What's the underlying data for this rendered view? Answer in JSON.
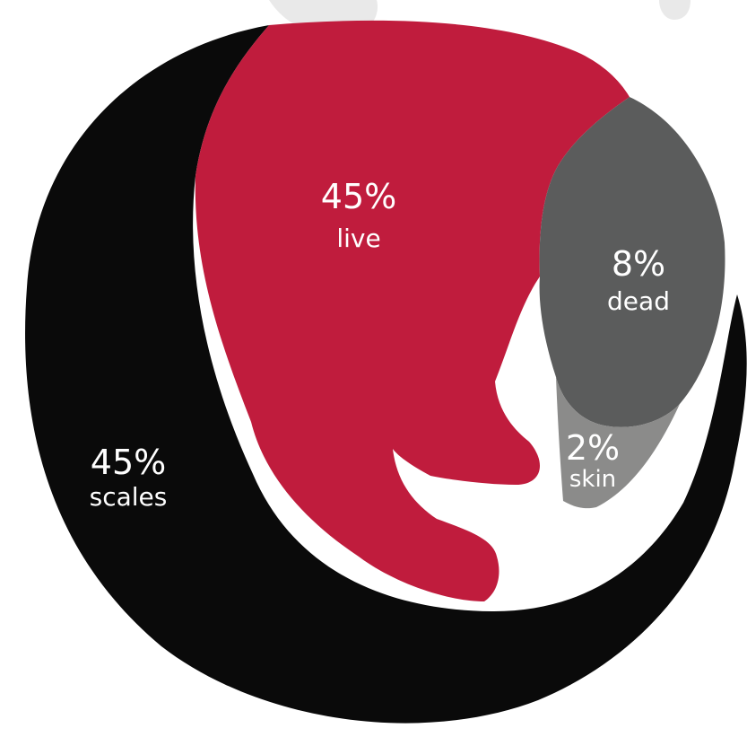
{
  "chart_data": {
    "type": "pie",
    "segments": [
      {
        "name": "scales",
        "value": 45,
        "label_value": "45%",
        "label_name": "scales",
        "color": "#0a0a0a"
      },
      {
        "name": "live",
        "value": 45,
        "label_value": "45%",
        "label_name": "live",
        "color": "#c01c3d"
      },
      {
        "name": "dead",
        "value": 8,
        "label_value": "8%",
        "label_name": "dead",
        "color": "#5b5c5c"
      },
      {
        "name": "skin",
        "value": 2,
        "label_value": "2%",
        "label_name": "skin",
        "color": "#8b8b8a"
      }
    ]
  },
  "colors": {
    "background": "#ffffff",
    "smudge": "#e9e9e9"
  }
}
